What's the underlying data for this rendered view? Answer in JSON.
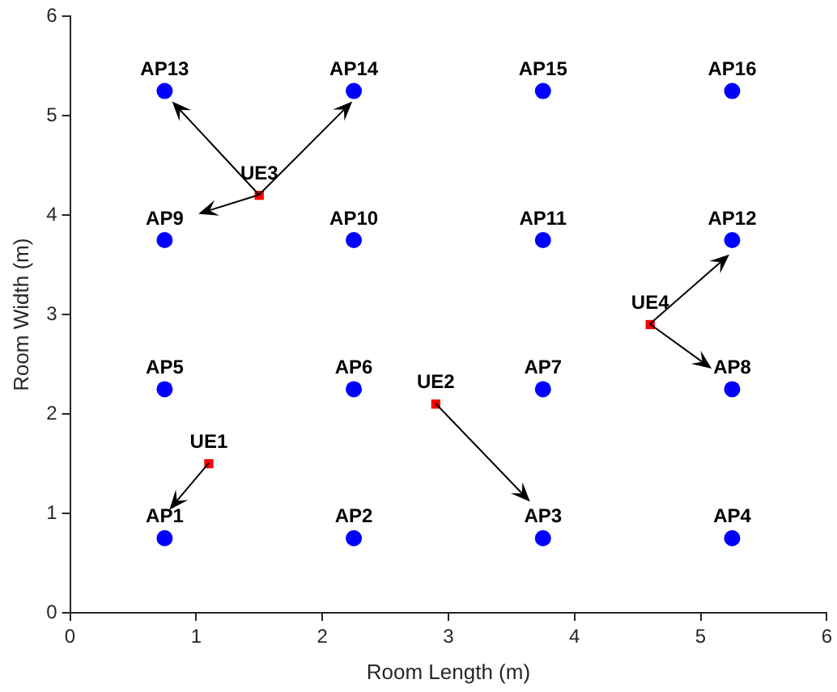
{
  "chart_data": {
    "type": "scatter",
    "xlabel": "Room Length (m)",
    "ylabel": "Room Width (m)",
    "xlim": [
      0,
      6
    ],
    "ylim": [
      0,
      6
    ],
    "xticks": [
      0,
      1,
      2,
      3,
      4,
      5,
      6
    ],
    "yticks": [
      0,
      1,
      2,
      3,
      4,
      5,
      6
    ],
    "grid": false,
    "legend": false,
    "series": [
      {
        "type": "scatter",
        "marker": "circle",
        "color": "#0000ff",
        "x": [
          0.75,
          2.25,
          3.75,
          5.25,
          0.75,
          2.25,
          3.75,
          5.25,
          0.75,
          2.25,
          3.75,
          5.25,
          0.75,
          2.25,
          3.75,
          5.25
        ],
        "values": [
          0.75,
          0.75,
          0.75,
          0.75,
          2.25,
          2.25,
          2.25,
          2.25,
          3.75,
          3.75,
          3.75,
          3.75,
          5.25,
          5.25,
          5.25,
          5.25
        ]
      },
      {
        "type": "scatter",
        "marker": "square",
        "color": "#ff0000",
        "x": [
          1.1,
          2.9,
          1.5,
          4.6
        ],
        "values": [
          1.5,
          2.1,
          4.2,
          2.9
        ]
      }
    ],
    "annotations": [
      {
        "text": "AP1",
        "x": 0.75,
        "y": 0.75
      },
      {
        "text": "AP2",
        "x": 2.25,
        "y": 0.75
      },
      {
        "text": "AP3",
        "x": 3.75,
        "y": 0.75
      },
      {
        "text": "AP4",
        "x": 5.25,
        "y": 0.75
      },
      {
        "text": "AP5",
        "x": 0.75,
        "y": 2.25
      },
      {
        "text": "AP6",
        "x": 2.25,
        "y": 2.25
      },
      {
        "text": "AP7",
        "x": 3.75,
        "y": 2.25
      },
      {
        "text": "AP8",
        "x": 5.25,
        "y": 2.25
      },
      {
        "text": "AP9",
        "x": 0.75,
        "y": 3.75
      },
      {
        "text": "AP10",
        "x": 2.25,
        "y": 3.75
      },
      {
        "text": "AP11",
        "x": 3.75,
        "y": 3.75
      },
      {
        "text": "AP12",
        "x": 5.25,
        "y": 3.75
      },
      {
        "text": "AP13",
        "x": 0.75,
        "y": 5.25
      },
      {
        "text": "AP14",
        "x": 2.25,
        "y": 5.25
      },
      {
        "text": "AP15",
        "x": 3.75,
        "y": 5.25
      },
      {
        "text": "AP16",
        "x": 5.25,
        "y": 5.25
      },
      {
        "text": "UE1",
        "x": 1.1,
        "y": 1.5
      },
      {
        "text": "UE2",
        "x": 2.9,
        "y": 2.1
      },
      {
        "text": "UE3",
        "x": 1.5,
        "y": 4.2
      },
      {
        "text": "UE4",
        "x": 4.6,
        "y": 2.9
      }
    ]
  }
}
